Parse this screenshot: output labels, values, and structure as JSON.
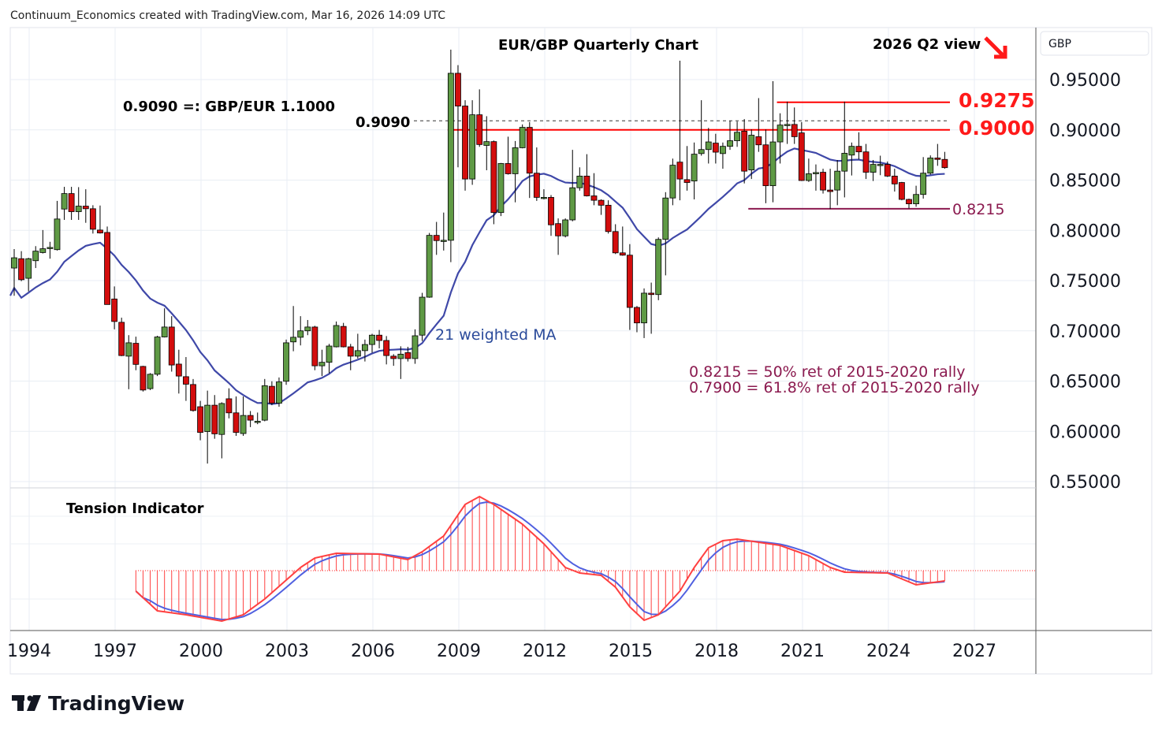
{
  "header": {
    "attribution": "Continuum_Economics created with TradingView.com, Mar 16, 2026 14:09 UTC"
  },
  "currency_button": "GBP",
  "logo_text": "TradingView",
  "chart_data": {
    "type": "candlestick",
    "title": "EUR/GBP Quarterly Chart",
    "view_label": "2026 Q2 view",
    "view_direction": "down",
    "period": "quarterly",
    "start_quarter": "1993Q3",
    "end_quarter": "2026Q1",
    "ylim": [
      0.55,
      0.95
    ],
    "y_ticks": [
      {
        "value": 0.95,
        "label": "0.95000"
      },
      {
        "value": 0.9,
        "label": "0.90000"
      },
      {
        "value": 0.85,
        "label": "0.85000"
      },
      {
        "value": 0.8,
        "label": "0.80000"
      },
      {
        "value": 0.75,
        "label": "0.75000"
      },
      {
        "value": 0.7,
        "label": "0.70000"
      },
      {
        "value": 0.65,
        "label": "0.65000"
      },
      {
        "value": 0.6,
        "label": "0.60000"
      },
      {
        "value": 0.55,
        "label": "0.55000"
      }
    ],
    "x_ticks": [
      {
        "year": 1994,
        "label": "1994"
      },
      {
        "year": 1997,
        "label": "1997"
      },
      {
        "year": 2000,
        "label": "2000"
      },
      {
        "year": 2003,
        "label": "2003"
      },
      {
        "year": 2006,
        "label": "2006"
      },
      {
        "year": 2009,
        "label": "2009"
      },
      {
        "year": 2012,
        "label": "2012"
      },
      {
        "year": 2015,
        "label": "2015"
      },
      {
        "year": 2018,
        "label": "2018"
      },
      {
        "year": 2021,
        "label": "2021"
      },
      {
        "year": 2024,
        "label": "2024"
      },
      {
        "year": 2027,
        "label": "2027"
      }
    ],
    "colors": {
      "up": "#5f9a45",
      "down": "#d30d0d",
      "ma": "#3f48a8",
      "resistance": "#ff0000",
      "support": "#8b1a4f",
      "tension_red": "#ff4040",
      "tension_blue": "#5060e0"
    },
    "ohlc_columns": [
      "open",
      "high",
      "low",
      "close"
    ],
    "ohlc": [
      [
        0.7625,
        0.7814,
        0.7349,
        0.7727
      ],
      [
        0.7718,
        0.7793,
        0.7494,
        0.7509
      ],
      [
        0.7523,
        0.7727,
        0.7393,
        0.7718
      ],
      [
        0.7698,
        0.7843,
        0.7625,
        0.7793
      ],
      [
        0.7779,
        0.8003,
        0.777,
        0.7817
      ],
      [
        0.7828,
        0.7886,
        0.7718,
        0.783
      ],
      [
        0.7808,
        0.8293,
        0.7799,
        0.8113
      ],
      [
        0.8212,
        0.8433,
        0.8104,
        0.8366
      ],
      [
        0.8366,
        0.8433,
        0.8104,
        0.8186
      ],
      [
        0.8186,
        0.843,
        0.8104,
        0.8241
      ],
      [
        0.8241,
        0.8409,
        0.8075,
        0.8215
      ],
      [
        0.8215,
        0.825,
        0.7968,
        0.8011
      ],
      [
        0.8003,
        0.8247,
        0.7968,
        0.7974
      ],
      [
        0.7979,
        0.8038,
        0.7262,
        0.7262
      ],
      [
        0.7317,
        0.7442,
        0.7015,
        0.7093
      ],
      [
        0.7085,
        0.7131,
        0.6748,
        0.6754
      ],
      [
        0.6748,
        0.6957,
        0.6419,
        0.6881
      ],
      [
        0.6876,
        0.6942,
        0.6608,
        0.6666
      ],
      [
        0.6646,
        0.6652,
        0.6396,
        0.6411
      ],
      [
        0.6425,
        0.6579,
        0.6411,
        0.6568
      ],
      [
        0.6568,
        0.6951,
        0.655,
        0.6939
      ],
      [
        0.6939,
        0.7224,
        0.6934,
        0.7038
      ],
      [
        0.7038,
        0.7146,
        0.6594,
        0.666
      ],
      [
        0.6669,
        0.6812,
        0.6376,
        0.655
      ],
      [
        0.6544,
        0.6739,
        0.6303,
        0.6469
      ],
      [
        0.6466,
        0.6521,
        0.6196,
        0.6207
      ],
      [
        0.6245,
        0.6303,
        0.5911,
        0.5989
      ],
      [
        0.5998,
        0.6405,
        0.5679,
        0.626
      ],
      [
        0.626,
        0.6361,
        0.5926,
        0.5975
      ],
      [
        0.5969,
        0.6289,
        0.5731,
        0.6277
      ],
      [
        0.6324,
        0.6428,
        0.6129,
        0.6184
      ],
      [
        0.6184,
        0.6347,
        0.5955,
        0.5989
      ],
      [
        0.5978,
        0.6347,
        0.5955,
        0.6158
      ],
      [
        0.6158,
        0.6202,
        0.6042,
        0.6111
      ],
      [
        0.61,
        0.6187,
        0.6071,
        0.61
      ],
      [
        0.6111,
        0.6521,
        0.61,
        0.6454
      ],
      [
        0.6448,
        0.6498,
        0.626,
        0.628
      ],
      [
        0.628,
        0.6536,
        0.6245,
        0.6492
      ],
      [
        0.6498,
        0.6913,
        0.6463,
        0.6881
      ],
      [
        0.689,
        0.7247,
        0.6797,
        0.6936
      ],
      [
        0.6936,
        0.7146,
        0.6855,
        0.7
      ],
      [
        0.7,
        0.7108,
        0.6957,
        0.7038
      ],
      [
        0.7038,
        0.705,
        0.6608,
        0.6652
      ],
      [
        0.6652,
        0.6812,
        0.655,
        0.6687
      ],
      [
        0.6687,
        0.687,
        0.6579,
        0.6849
      ],
      [
        0.6841,
        0.7093,
        0.6835,
        0.7053
      ],
      [
        0.7044,
        0.7079,
        0.6835,
        0.6841
      ],
      [
        0.6841,
        0.687,
        0.6608,
        0.6748
      ],
      [
        0.6748,
        0.6971,
        0.6724,
        0.6803
      ],
      [
        0.6803,
        0.6913,
        0.6695,
        0.6864
      ],
      [
        0.6864,
        0.6971,
        0.6783,
        0.6957
      ],
      [
        0.6957,
        0.7009,
        0.6826,
        0.6904
      ],
      [
        0.6904,
        0.6948,
        0.6666,
        0.6754
      ],
      [
        0.6748,
        0.6768,
        0.6652,
        0.6724
      ],
      [
        0.6724,
        0.6846,
        0.6521,
        0.6768
      ],
      [
        0.6783,
        0.6841,
        0.6695,
        0.6724
      ],
      [
        0.6724,
        0.7015,
        0.6672,
        0.6951
      ],
      [
        0.6957,
        0.7378,
        0.6899,
        0.7335
      ],
      [
        0.7335,
        0.7974,
        0.7329,
        0.795
      ],
      [
        0.795,
        0.8084,
        0.7756,
        0.7898
      ],
      [
        0.7901,
        0.8177,
        0.7799,
        0.7901
      ],
      [
        0.7901,
        0.9798,
        0.7683,
        0.9563
      ],
      [
        0.9563,
        0.9644,
        0.8627,
        0.9237
      ],
      [
        0.9237,
        0.9295,
        0.8395,
        0.8511
      ],
      [
        0.8511,
        0.9295,
        0.8453,
        0.915
      ],
      [
        0.915,
        0.9403,
        0.8831,
        0.8854
      ],
      [
        0.8845,
        0.9136,
        0.8598,
        0.8883
      ],
      [
        0.8883,
        0.8894,
        0.8061,
        0.8177
      ],
      [
        0.8177,
        0.8671,
        0.8142,
        0.8665
      ],
      [
        0.8665,
        0.8932,
        0.8555,
        0.8563
      ],
      [
        0.8563,
        0.8889,
        0.8279,
        0.8822
      ],
      [
        0.8822,
        0.9054,
        0.8816,
        0.9025
      ],
      [
        0.9025,
        0.9077,
        0.8322,
        0.8569
      ],
      [
        0.8569,
        0.8825,
        0.8293,
        0.8328
      ],
      [
        0.8328,
        0.8409,
        0.8308,
        0.8328
      ],
      [
        0.8328,
        0.8351,
        0.7945,
        0.8055
      ],
      [
        0.8067,
        0.8119,
        0.7756,
        0.7945
      ],
      [
        0.7945,
        0.8119,
        0.793,
        0.8104
      ],
      [
        0.8104,
        0.8801,
        0.809,
        0.8424
      ],
      [
        0.8424,
        0.8627,
        0.8395,
        0.854
      ],
      [
        0.854,
        0.8758,
        0.8337,
        0.8343
      ],
      [
        0.8343,
        0.8569,
        0.825,
        0.8299
      ],
      [
        0.8299,
        0.8308,
        0.8154,
        0.825
      ],
      [
        0.825,
        0.8299,
        0.7968,
        0.7988
      ],
      [
        0.7988,
        0.8061,
        0.7764,
        0.7776
      ],
      [
        0.7776,
        0.8038,
        0.7747,
        0.7753
      ],
      [
        0.7753,
        0.7863,
        0.7009,
        0.7233
      ],
      [
        0.7233,
        0.7247,
        0.6986,
        0.7079
      ],
      [
        0.7079,
        0.7422,
        0.6928,
        0.7375
      ],
      [
        0.7375,
        0.748,
        0.6971,
        0.7361
      ],
      [
        0.7361,
        0.793,
        0.7305,
        0.791
      ],
      [
        0.791,
        0.838,
        0.7552,
        0.8322
      ],
      [
        0.8322,
        0.8714,
        0.825,
        0.8648
      ],
      [
        0.8679,
        0.9688,
        0.8299,
        0.8511
      ],
      [
        0.8505,
        0.8839,
        0.8395,
        0.8476
      ],
      [
        0.8491,
        0.8874,
        0.8308,
        0.8758
      ],
      [
        0.8764,
        0.9295,
        0.8743,
        0.8804
      ],
      [
        0.8804,
        0.9019,
        0.8665,
        0.888
      ],
      [
        0.8868,
        0.8961,
        0.8665,
        0.8778
      ],
      [
        0.8764,
        0.8874,
        0.8613,
        0.8836
      ],
      [
        0.8836,
        0.9092,
        0.8801,
        0.8892
      ],
      [
        0.8892,
        0.9083,
        0.8831,
        0.8976
      ],
      [
        0.8987,
        0.9107,
        0.8467,
        0.8589
      ],
      [
        0.8601,
        0.9005,
        0.8511,
        0.8947
      ],
      [
        0.8932,
        0.9316,
        0.8781,
        0.8851
      ],
      [
        0.8851,
        0.9005,
        0.827,
        0.8444
      ],
      [
        0.8444,
        0.9484,
        0.8279,
        0.888
      ],
      [
        0.888,
        0.9165,
        0.8665,
        0.9048
      ],
      [
        0.9054,
        0.9281,
        0.886,
        0.9054
      ],
      [
        0.9054,
        0.9223,
        0.886,
        0.8932
      ],
      [
        0.897,
        0.9077,
        0.8491,
        0.8496
      ],
      [
        0.8496,
        0.8714,
        0.8482,
        0.8563
      ],
      [
        0.8563,
        0.8656,
        0.8395,
        0.8575
      ],
      [
        0.8578,
        0.8613,
        0.8366,
        0.8401
      ],
      [
        0.8401,
        0.8613,
        0.8212,
        0.8386
      ],
      [
        0.8401,
        0.87,
        0.825,
        0.8589
      ],
      [
        0.8589,
        0.9281,
        0.8328,
        0.8767
      ],
      [
        0.8749,
        0.8874,
        0.8546,
        0.8836
      ],
      [
        0.8836,
        0.8976,
        0.8706,
        0.8781
      ],
      [
        0.8781,
        0.886,
        0.8511,
        0.8578
      ],
      [
        0.8578,
        0.87,
        0.8491,
        0.8656
      ],
      [
        0.8656,
        0.8743,
        0.8549,
        0.8656
      ],
      [
        0.8656,
        0.8685,
        0.8531,
        0.854
      ],
      [
        0.854,
        0.8613,
        0.8386,
        0.8462
      ],
      [
        0.8476,
        0.8482,
        0.8299,
        0.8308
      ],
      [
        0.8308,
        0.8316,
        0.8218,
        0.8264
      ],
      [
        0.8264,
        0.8444,
        0.8235,
        0.8357
      ],
      [
        0.8357,
        0.8729,
        0.8316,
        0.8569
      ],
      [
        0.8569,
        0.8746,
        0.8555,
        0.872
      ],
      [
        0.872,
        0.886,
        0.8642,
        0.8706
      ],
      [
        0.8706,
        0.8781,
        0.8613,
        0.8624
      ]
    ],
    "moving_average": {
      "label": "21 weighted MA",
      "period": 21,
      "type": "weighted"
    },
    "levels": [
      {
        "value": 0.9275,
        "label": "0.9275",
        "kind": "resistance",
        "from_quarter_index": 107
      },
      {
        "value": 0.9,
        "label": "0.9000",
        "kind": "resistance",
        "from_quarter_index": 61
      },
      {
        "value": 0.909,
        "label": "0.9090",
        "kind": "reference",
        "from_quarter_index": 56
      },
      {
        "value": 0.8215,
        "label": "0.8215",
        "kind": "support",
        "from_quarter_index": 103
      }
    ],
    "annotations": {
      "conversion": "0.9090 =: GBP/EUR 1.1000",
      "retracement_50": "0.8215 = 50% ret of 2015-2020 rally",
      "retracement_618": "0.7900 = 61.8% ret of 2015-2020 rally"
    },
    "tension_indicator": {
      "label": "Tension Indicator",
      "zero": 0,
      "knots_quarter_index_value": [
        [
          17,
          -2.6
        ],
        [
          20,
          -5.1
        ],
        [
          24,
          -5.6
        ],
        [
          29,
          -6.4
        ],
        [
          32,
          -5.6
        ],
        [
          35,
          -3.6
        ],
        [
          40,
          0.4
        ],
        [
          42,
          1.6
        ],
        [
          45,
          2.2
        ],
        [
          51,
          2.1
        ],
        [
          55,
          1.4
        ],
        [
          57,
          2.4
        ],
        [
          60,
          4.4
        ],
        [
          63,
          8.4
        ],
        [
          65,
          9.4
        ],
        [
          67,
          8.4
        ],
        [
          71,
          5.9
        ],
        [
          74,
          3.4
        ],
        [
          77,
          0.4
        ],
        [
          79,
          -0.3
        ],
        [
          82,
          -0.6
        ],
        [
          84,
          -2.1
        ],
        [
          86,
          -4.6
        ],
        [
          88,
          -6.3
        ],
        [
          90,
          -5.6
        ],
        [
          93,
          -2.6
        ],
        [
          95,
          0.4
        ],
        [
          97,
          2.9
        ],
        [
          99,
          3.8
        ],
        [
          101,
          4.0
        ],
        [
          107,
          3.2
        ],
        [
          111,
          1.9
        ],
        [
          114,
          0.4
        ],
        [
          116,
          -0.2
        ],
        [
          122,
          -0.3
        ],
        [
          126,
          -1.8
        ],
        [
          130,
          -1.3
        ]
      ]
    }
  }
}
